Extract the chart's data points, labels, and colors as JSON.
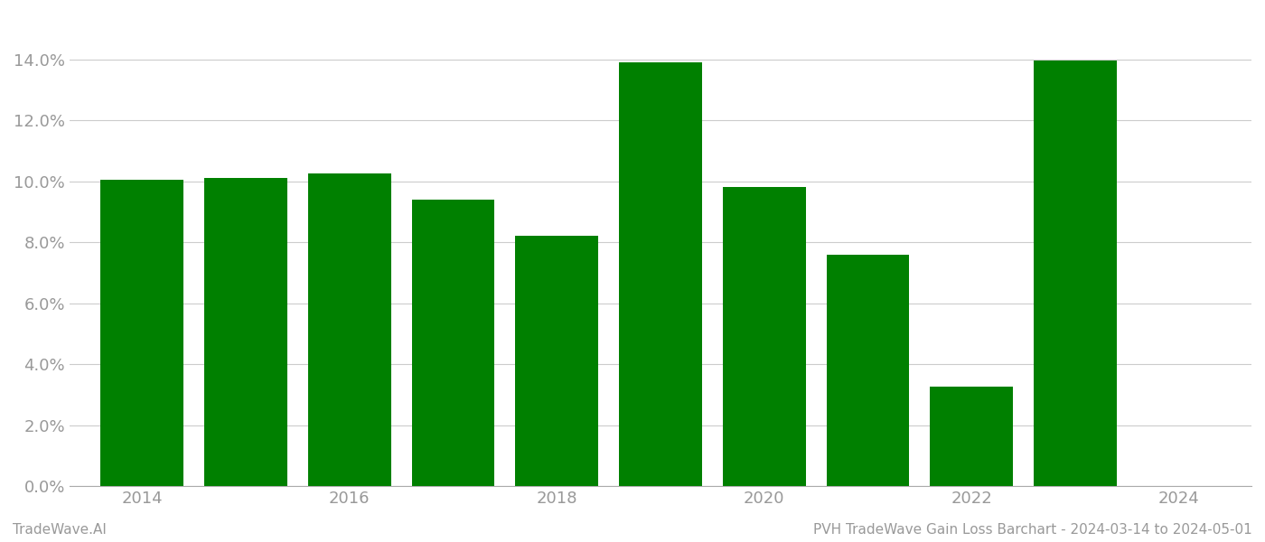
{
  "years": [
    2014,
    2015,
    2016,
    2017,
    2018,
    2019,
    2020,
    2021,
    2022,
    2023
  ],
  "values": [
    0.1005,
    0.1012,
    0.1025,
    0.094,
    0.082,
    0.139,
    0.098,
    0.076,
    0.0325,
    0.1395
  ],
  "bar_color": "#008000",
  "background_color": "#ffffff",
  "grid_color": "#cccccc",
  "ylim": [
    0,
    0.155
  ],
  "yticks": [
    0.0,
    0.02,
    0.04,
    0.06,
    0.08,
    0.1,
    0.12,
    0.14
  ],
  "xlabel_color": "#999999",
  "ylabel_color": "#999999",
  "footer_left": "TradeWave.AI",
  "footer_right": "PVH TradeWave Gain Loss Barchart - 2024-03-14 to 2024-05-01",
  "footer_color": "#999999",
  "footer_fontsize": 11,
  "tick_fontsize": 13,
  "bar_width": 0.8,
  "xlim_left": 2013.3,
  "xlim_right": 2024.7
}
